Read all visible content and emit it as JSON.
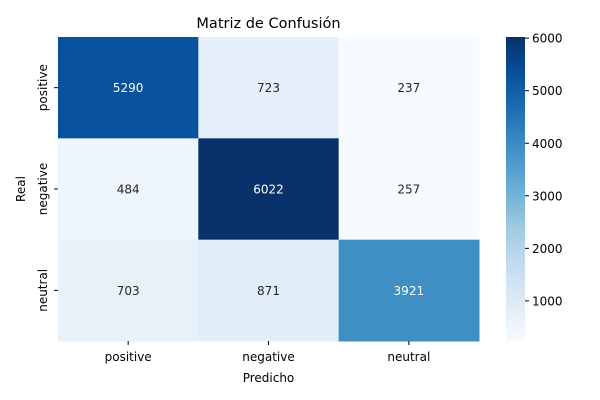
{
  "chart_data": {
    "type": "heatmap",
    "title": "Matriz de Confusión",
    "xlabel": "Predicho",
    "ylabel": "Real",
    "x_categories": [
      "positive",
      "negative",
      "neutral"
    ],
    "y_categories": [
      "positive",
      "negative",
      "neutral"
    ],
    "values": [
      [
        5290,
        723,
        237
      ],
      [
        484,
        6022,
        257
      ],
      [
        703,
        871,
        3921
      ]
    ],
    "colormap": "Blues",
    "colorbar": {
      "vmin": 237,
      "vmax": 6022,
      "ticks": [
        1000,
        2000,
        3000,
        4000,
        5000,
        6000
      ],
      "tick_labels": [
        "1000",
        "2000",
        "3000",
        "4000",
        "5000",
        "6000"
      ]
    },
    "annotation_colors": {
      "dark_cell": "#ffffff",
      "light_cell": "#262626"
    }
  }
}
